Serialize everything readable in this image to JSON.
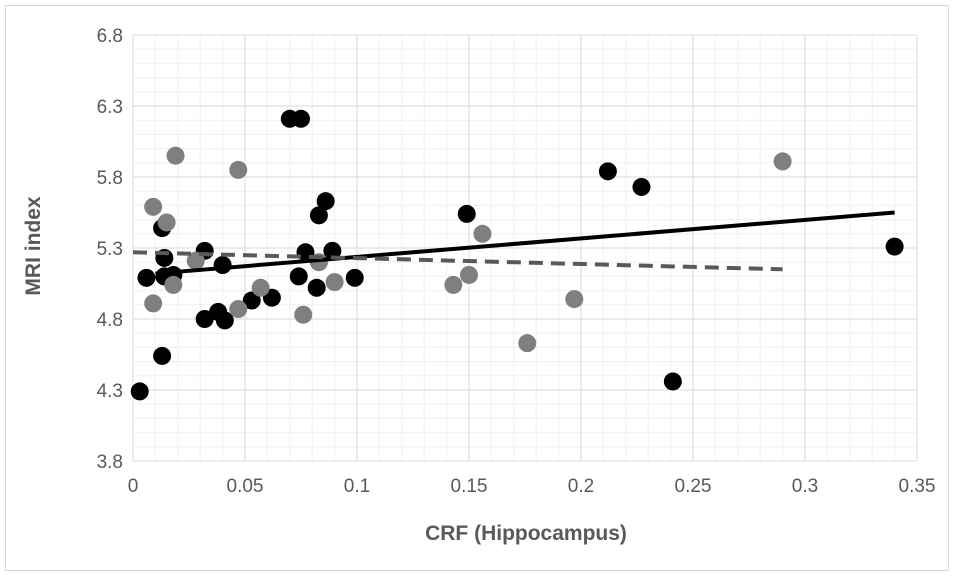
{
  "chart_data": {
    "type": "scatter",
    "title": "",
    "xlabel": "CRF (Hippocampus)",
    "ylabel": "MRI index",
    "xlim": [
      0,
      0.35
    ],
    "ylim": [
      3.8,
      6.8
    ],
    "x_ticks": [
      "0",
      "0.05",
      "0.1",
      "0.15",
      "0.2",
      "0.25",
      "0.3",
      "0.35"
    ],
    "y_ticks": [
      "3.8",
      "4.3",
      "4.8",
      "5.3",
      "5.8",
      "6.3",
      "6.8"
    ],
    "grid": "major and minor",
    "legend": "none",
    "series": [
      {
        "color": "#000000",
        "points": [
          [
            0.003,
            4.29
          ],
          [
            0.006,
            5.09
          ],
          [
            0.013,
            4.54
          ],
          [
            0.013,
            5.44
          ],
          [
            0.014,
            5.23
          ],
          [
            0.014,
            5.1
          ],
          [
            0.018,
            5.11
          ],
          [
            0.032,
            5.28
          ],
          [
            0.032,
            4.8
          ],
          [
            0.038,
            4.85
          ],
          [
            0.04,
            5.18
          ],
          [
            0.041,
            4.79
          ],
          [
            0.053,
            4.93
          ],
          [
            0.062,
            4.95
          ],
          [
            0.07,
            6.21
          ],
          [
            0.075,
            6.21
          ],
          [
            0.074,
            5.1
          ],
          [
            0.077,
            5.27
          ],
          [
            0.082,
            5.02
          ],
          [
            0.083,
            5.53
          ],
          [
            0.086,
            5.63
          ],
          [
            0.089,
            5.28
          ],
          [
            0.099,
            5.09
          ],
          [
            0.149,
            5.54
          ],
          [
            0.212,
            5.84
          ],
          [
            0.227,
            5.73
          ],
          [
            0.241,
            4.36
          ],
          [
            0.34,
            5.31
          ]
        ],
        "trendline": {
          "style": "solid",
          "x": [
            0.01,
            0.34
          ],
          "y": [
            5.12,
            5.55
          ]
        }
      },
      {
        "color": "#7f7f7f",
        "points": [
          [
            0.009,
            5.59
          ],
          [
            0.009,
            4.91
          ],
          [
            0.015,
            5.48
          ],
          [
            0.018,
            5.04
          ],
          [
            0.019,
            5.95
          ],
          [
            0.028,
            5.21
          ],
          [
            0.047,
            5.85
          ],
          [
            0.047,
            4.87
          ],
          [
            0.057,
            5.02
          ],
          [
            0.076,
            4.83
          ],
          [
            0.083,
            5.2
          ],
          [
            0.09,
            5.06
          ],
          [
            0.143,
            5.04
          ],
          [
            0.15,
            5.11
          ],
          [
            0.156,
            5.4
          ],
          [
            0.176,
            4.63
          ],
          [
            0.197,
            4.94
          ],
          [
            0.29,
            5.91
          ]
        ],
        "trendline": {
          "style": "dashed",
          "x": [
            0.0,
            0.29
          ],
          "y": [
            5.27,
            5.15
          ]
        }
      }
    ]
  }
}
